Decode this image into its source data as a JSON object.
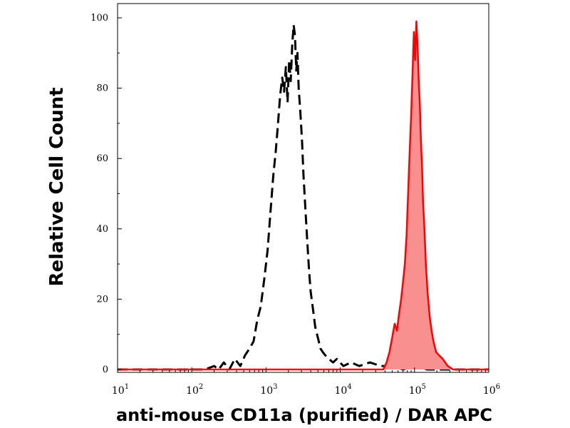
{
  "chart_data": {
    "type": "line",
    "title": "",
    "xlabel": "anti-mouse CD11a (purified) / DAR APC",
    "ylabel": "Relative Cell Count",
    "xscale": "log",
    "xlim": [
      10,
      1000000
    ],
    "ylim": [
      0,
      100
    ],
    "grid": false,
    "legend": "none",
    "y_ticks": [
      {
        "value": 0,
        "label": "0"
      },
      {
        "value": 20,
        "label": "20"
      },
      {
        "value": 40,
        "label": "40"
      },
      {
        "value": 60,
        "label": "60"
      },
      {
        "value": 80,
        "label": "80"
      },
      {
        "value": 100,
        "label": "100"
      }
    ],
    "x_ticks": [
      {
        "value": 10,
        "base": "10",
        "exp": "1"
      },
      {
        "value": 100,
        "base": "10",
        "exp": "2"
      },
      {
        "value": 1000,
        "base": "10",
        "exp": "3"
      },
      {
        "value": 10000,
        "base": "10",
        "exp": "4"
      },
      {
        "value": 100000,
        "base": "10",
        "exp": "5"
      },
      {
        "value": 1000000,
        "base": "10",
        "exp": "6"
      }
    ],
    "series": [
      {
        "style": "dashed",
        "color": "#000000",
        "fill": "none",
        "x": [
          10,
          150,
          200,
          230,
          270,
          320,
          380,
          450,
          520,
          600,
          680,
          760,
          850,
          950,
          1050,
          1150,
          1250,
          1350,
          1450,
          1550,
          1650,
          1750,
          1850,
          1950,
          2050,
          2150,
          2250,
          2350,
          2450,
          2550,
          2650,
          2750,
          2900,
          3050,
          3200,
          3400,
          3600,
          3800,
          4000,
          4300,
          4600,
          5000,
          5400,
          5800,
          6300,
          7000,
          8000,
          9000,
          11000,
          14000,
          18000,
          25000,
          35000,
          50000,
          70000,
          100000,
          150000,
          300000,
          1000000
        ],
        "y": [
          0,
          0,
          1,
          0,
          2,
          0,
          3,
          1,
          4,
          6,
          8,
          14,
          18,
          26,
          34,
          45,
          55,
          62,
          70,
          78,
          83,
          79,
          86,
          76,
          88,
          82,
          92,
          98,
          95,
          85,
          90,
          80,
          73,
          65,
          55,
          45,
          36,
          28,
          22,
          17,
          12,
          9,
          6,
          5,
          4,
          3,
          2,
          3,
          1,
          2,
          1,
          2,
          1,
          1,
          0,
          1,
          0,
          0,
          0
        ]
      },
      {
        "style": "solid",
        "color": "#ff0000",
        "fill": "#f99090",
        "x": [
          10,
          38000,
          42000,
          46000,
          50000,
          54000,
          58000,
          62000,
          66000,
          70000,
          74000,
          78000,
          82000,
          86000,
          90000,
          94000,
          98000,
          102000,
          106000,
          110000,
          114000,
          118000,
          122000,
          126000,
          130000,
          136000,
          142000,
          150000,
          160000,
          170000,
          180000,
          195000,
          215000,
          240000,
          280000,
          330000,
          1000000
        ],
        "y": [
          0,
          0,
          2,
          5,
          9,
          13,
          11,
          16,
          20,
          25,
          30,
          38,
          50,
          62,
          72,
          84,
          96,
          88,
          99,
          92,
          82,
          75,
          65,
          58,
          48,
          40,
          30,
          22,
          15,
          11,
          8,
          5,
          4,
          3,
          1,
          0,
          0
        ]
      }
    ]
  }
}
